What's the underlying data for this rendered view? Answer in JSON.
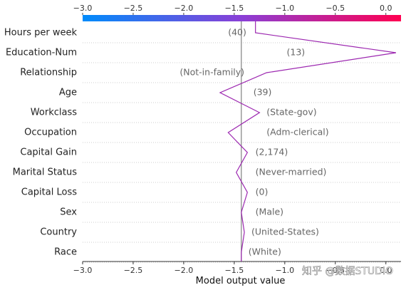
{
  "chart_data": {
    "type": "line",
    "xlabel": "Model output value",
    "xlim": [
      -3.0,
      0.15
    ],
    "ticks": [
      -3.0,
      -2.5,
      -2.0,
      -1.5,
      -1.0,
      -0.5,
      0.0
    ],
    "tick_labels": [
      "−3.0",
      "−2.5",
      "−2.0",
      "−1.5",
      "−1.0",
      "−0.5",
      "0.0"
    ],
    "base_value": -1.43,
    "start_value": -1.43,
    "colorbar": {
      "low_color": "#008bfb",
      "mid_color": "#8a3fd6",
      "high_color": "#ff0051"
    },
    "line_color": "#9c27b0",
    "grid": "dotted horizontal",
    "features": [
      {
        "name": "Hours per week",
        "value_label": "(40)",
        "output": -1.29
      },
      {
        "name": "Education-Num",
        "value_label": "(13)",
        "output": 0.1
      },
      {
        "name": "Relationship",
        "value_label": "(Not-in-family)",
        "output": -1.18
      },
      {
        "name": "Age",
        "value_label": "(39)",
        "output": -1.64
      },
      {
        "name": "Workclass",
        "value_label": "(State-gov)",
        "output": -1.25
      },
      {
        "name": "Occupation",
        "value_label": "(Adm-clerical)",
        "output": -1.56
      },
      {
        "name": "Capital Gain",
        "value_label": "(2,174)",
        "output": -1.37
      },
      {
        "name": "Marital Status",
        "value_label": "(Never-married)",
        "output": -1.48
      },
      {
        "name": "Capital Loss",
        "value_label": "(0)",
        "output": -1.37
      },
      {
        "name": "Sex",
        "value_label": "(Male)",
        "output": -1.43
      },
      {
        "name": "Country",
        "value_label": "(United-States)",
        "output": -1.4
      },
      {
        "name": "Race",
        "value_label": "(White)",
        "output": -1.43
      }
    ]
  },
  "watermark": "知乎 @数据STUDIO"
}
